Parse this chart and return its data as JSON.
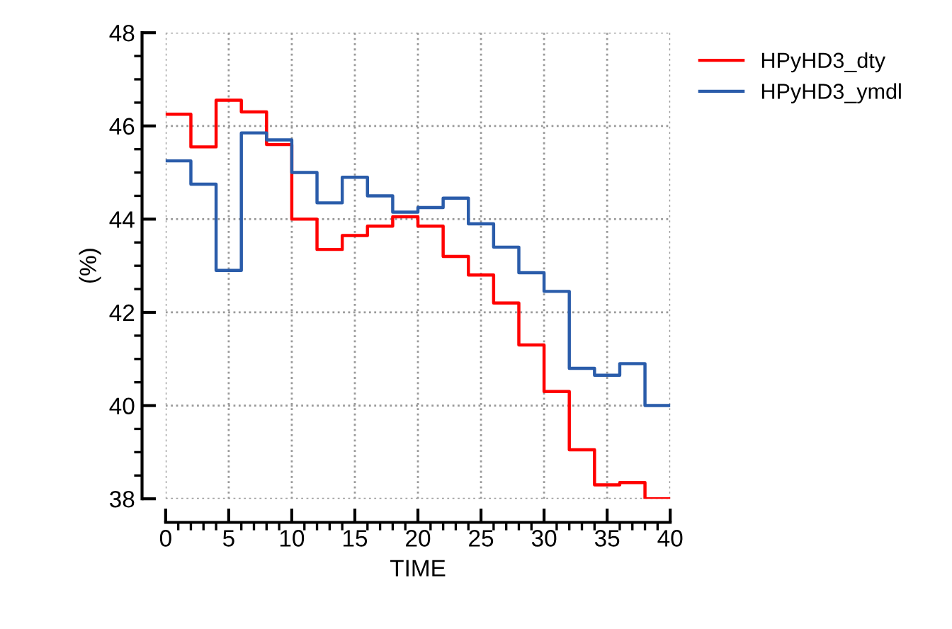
{
  "chart_data": {
    "type": "step",
    "xlabel": "TIME",
    "ylabel": "(%)",
    "x": [
      0,
      2,
      4,
      6,
      8,
      10,
      12,
      14,
      16,
      18,
      20,
      22,
      24,
      26,
      28,
      30,
      32,
      34,
      36,
      38,
      40
    ],
    "series": [
      {
        "name": "HPyHD3_dty",
        "color": "#ff0000",
        "values": [
          46.25,
          45.55,
          46.55,
          46.3,
          45.6,
          44.0,
          43.35,
          43.65,
          43.85,
          44.05,
          43.85,
          43.2,
          42.8,
          42.2,
          41.3,
          40.3,
          39.05,
          38.3,
          38.35,
          38.0,
          38.0
        ]
      },
      {
        "name": "HPyHD3_ymdl",
        "color": "#2a5caa",
        "values": [
          45.25,
          44.75,
          42.9,
          45.85,
          45.7,
          45.0,
          44.35,
          44.9,
          44.5,
          44.15,
          44.25,
          44.45,
          43.9,
          43.4,
          42.85,
          42.45,
          40.8,
          40.65,
          40.9,
          40.0,
          40.0
        ]
      }
    ],
    "xlim": [
      0,
      40
    ],
    "xticks": [
      0,
      5,
      10,
      15,
      20,
      25,
      30,
      35,
      40
    ],
    "ylim": [
      38,
      48
    ],
    "yticks": [
      38,
      40,
      42,
      44,
      46,
      48
    ],
    "grid": true,
    "legend": "top right",
    "line_style": "solid",
    "marker": "none"
  }
}
